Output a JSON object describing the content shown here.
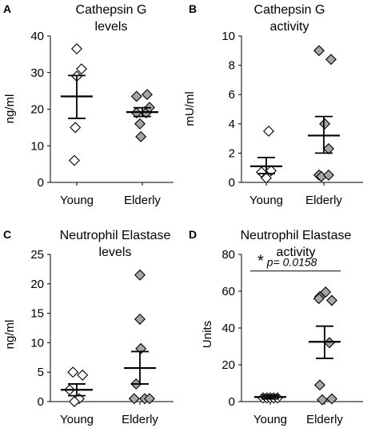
{
  "chart_data": [
    {
      "panel": "A",
      "type": "scatter",
      "title_lines": [
        "Cathepsin G",
        "levels"
      ],
      "ylabel": "ng/ml",
      "ylim": [
        0,
        40
      ],
      "yticks": [
        0,
        10,
        20,
        30,
        40
      ],
      "categories": [
        "Young",
        "Elderly"
      ],
      "series": [
        {
          "category": "Young",
          "fill": "#ffffff",
          "mean": 23.5,
          "sem_low": 17.5,
          "sem_high": 29.2,
          "points": [
            {
              "x": 0.0,
              "y": 36.5
            },
            {
              "x": 0.0,
              "y": 29.0
            },
            {
              "x": 0.1,
              "y": 31.0
            },
            {
              "x": -0.03,
              "y": 15.0
            },
            {
              "x": -0.05,
              "y": 6.0
            }
          ]
        },
        {
          "category": "Elderly",
          "fill": "#a6a6a6",
          "mean": 19.2,
          "sem_low": 18.0,
          "sem_high": 20.4,
          "points": [
            {
              "x": -0.12,
              "y": 23.5
            },
            {
              "x": 0.1,
              "y": 24.0
            },
            {
              "x": -0.12,
              "y": 19.0
            },
            {
              "x": 0.08,
              "y": 19.0
            },
            {
              "x": 0.15,
              "y": 20.5
            },
            {
              "x": -0.05,
              "y": 16.0
            },
            {
              "x": -0.03,
              "y": 12.5
            }
          ]
        }
      ]
    },
    {
      "panel": "B",
      "type": "scatter",
      "title_lines": [
        "Cathepsin G",
        "activity"
      ],
      "ylabel": "mU/ml",
      "ylim": [
        0,
        10
      ],
      "yticks": [
        0,
        2,
        4,
        6,
        8,
        10
      ],
      "categories": [
        "Young",
        "Elderly"
      ],
      "series": [
        {
          "category": "Young",
          "fill": "#ffffff",
          "mean": 1.1,
          "sem_low": 0.6,
          "sem_high": 1.7,
          "points": [
            {
              "x": 0.05,
              "y": 3.5
            },
            {
              "x": -0.1,
              "y": 0.7
            },
            {
              "x": 0.1,
              "y": 0.8
            },
            {
              "x": 0.0,
              "y": 0.3
            }
          ]
        },
        {
          "category": "Elderly",
          "fill": "#a6a6a6",
          "mean": 3.2,
          "sem_low": 2.0,
          "sem_high": 4.5,
          "points": [
            {
              "x": -0.1,
              "y": 9.0
            },
            {
              "x": 0.15,
              "y": 8.4
            },
            {
              "x": 0.02,
              "y": 4.0
            },
            {
              "x": 0.1,
              "y": 2.3
            },
            {
              "x": -0.1,
              "y": 0.5
            },
            {
              "x": -0.05,
              "y": 0.4
            },
            {
              "x": 0.1,
              "y": 0.5
            }
          ]
        }
      ]
    },
    {
      "panel": "C",
      "type": "scatter",
      "title_lines": [
        "Neutrophil Elastase",
        "levels"
      ],
      "ylabel": "ng/ml",
      "ylim": [
        0,
        25
      ],
      "yticks": [
        0,
        5,
        10,
        15,
        20,
        25
      ],
      "categories": [
        "Young",
        "Elderly"
      ],
      "series": [
        {
          "category": "Young",
          "fill": "#ffffff",
          "mean": 2.0,
          "sem_low": 1.0,
          "sem_high": 3.0,
          "points": [
            {
              "x": -0.08,
              "y": 5.0
            },
            {
              "x": 0.12,
              "y": 4.5
            },
            {
              "x": -0.15,
              "y": 2.0
            },
            {
              "x": 0.05,
              "y": 0.5
            },
            {
              "x": -0.05,
              "y": 0.0
            }
          ]
        },
        {
          "category": "Elderly",
          "fill": "#a6a6a6",
          "mean": 5.7,
          "sem_low": 3.0,
          "sem_high": 8.5,
          "points": [
            {
              "x": 0.0,
              "y": 21.5
            },
            {
              "x": 0.0,
              "y": 14.0
            },
            {
              "x": 0.02,
              "y": 9.0
            },
            {
              "x": -0.08,
              "y": 3.0
            },
            {
              "x": -0.12,
              "y": 0.5
            },
            {
              "x": 0.1,
              "y": 0.5
            },
            {
              "x": 0.2,
              "y": 0.5
            }
          ]
        }
      ]
    },
    {
      "panel": "D",
      "type": "scatter",
      "title_lines": [
        "Neutrophil Elastase",
        "activity"
      ],
      "ylabel": "Units",
      "ylim": [
        0,
        80
      ],
      "yticks": [
        0,
        20,
        40,
        60,
        80
      ],
      "categories": [
        "Young",
        "Elderly"
      ],
      "annotation": {
        "star": "*",
        "text": "p= 0.0158"
      },
      "series": [
        {
          "category": "Young",
          "fill": "#ffffff",
          "mean": 2.5,
          "sem_low": 1.5,
          "sem_high": 3.5,
          "points": [
            {
              "x": -0.15,
              "y": 2.0
            },
            {
              "x": -0.07,
              "y": 2.0
            },
            {
              "x": 0.0,
              "y": 2.0
            },
            {
              "x": 0.07,
              "y": 2.0
            },
            {
              "x": 0.15,
              "y": 2.0
            }
          ]
        },
        {
          "category": "Elderly",
          "fill": "#a6a6a6",
          "mean": 32.5,
          "sem_low": 23.5,
          "sem_high": 41.0,
          "points": [
            {
              "x": -0.1,
              "y": 57.0
            },
            {
              "x": 0.02,
              "y": 59.5
            },
            {
              "x": 0.15,
              "y": 55.0
            },
            {
              "x": -0.12,
              "y": 56.0
            },
            {
              "x": 0.1,
              "y": 32.0
            },
            {
              "x": -0.1,
              "y": 9.0
            },
            {
              "x": -0.05,
              "y": 1.0
            },
            {
              "x": 0.15,
              "y": 1.5
            }
          ]
        }
      ]
    }
  ]
}
